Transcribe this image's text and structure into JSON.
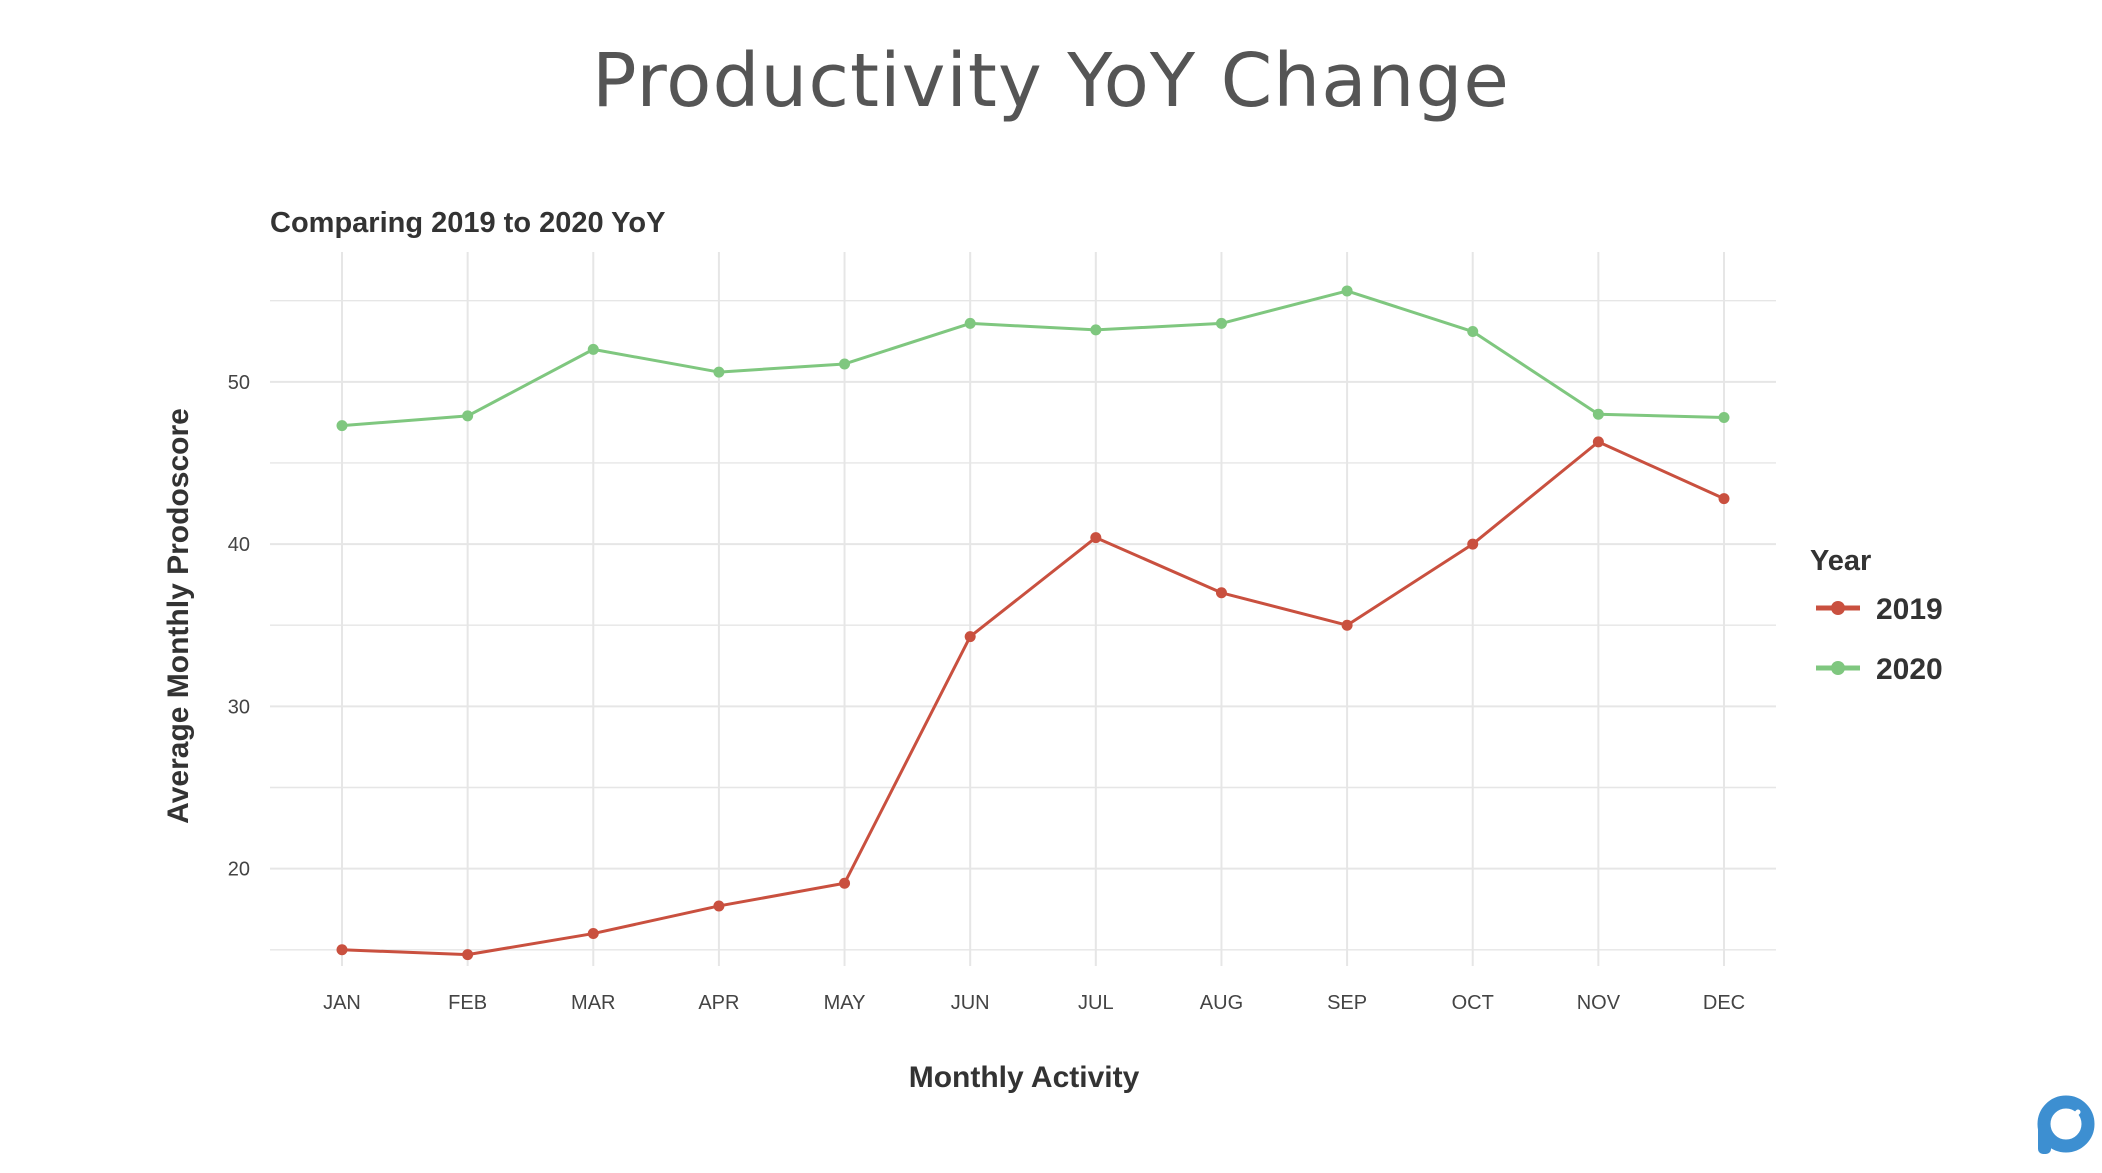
{
  "page": {
    "title": "Productivity YoY Change"
  },
  "colors": {
    "s2019": "#c9503f",
    "s2020": "#7fc77f",
    "grid": "#e6e6e6",
    "logo": "#3d8fd1"
  },
  "logo": {
    "icon": "prodoscore-logo-icon"
  },
  "chart_data": {
    "type": "line",
    "subtitle": "Comparing 2019 to 2020 YoY",
    "xlabel": "Monthly Activity",
    "ylabel": "Average Monthly Prodoscore",
    "categories": [
      "JAN",
      "FEB",
      "MAR",
      "APR",
      "MAY",
      "JUN",
      "JUL",
      "AUG",
      "SEP",
      "OCT",
      "NOV",
      "DEC"
    ],
    "ylim": [
      14,
      58
    ],
    "yticks": [
      20,
      30,
      40,
      50
    ],
    "grid": true,
    "legend": {
      "title": "Year",
      "position": "right"
    },
    "series": [
      {
        "name": "2019",
        "color": "#c9503f",
        "values": [
          15.0,
          14.7,
          16.0,
          17.7,
          19.1,
          34.3,
          40.4,
          37.0,
          35.0,
          40.0,
          46.3,
          42.8
        ]
      },
      {
        "name": "2020",
        "color": "#7fc77f",
        "values": [
          47.3,
          47.9,
          52.0,
          50.6,
          51.1,
          53.6,
          53.2,
          53.6,
          55.6,
          53.1,
          48.0,
          47.8
        ]
      }
    ]
  }
}
